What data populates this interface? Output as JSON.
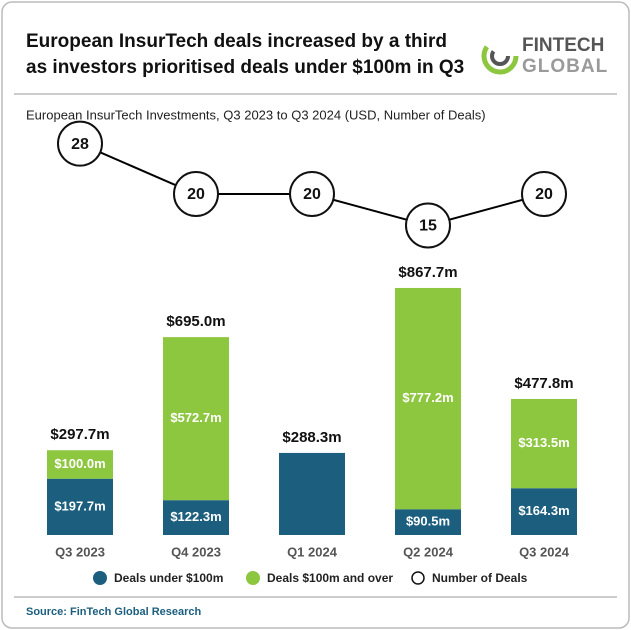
{
  "logo": [
    "FINTECH",
    "GLOBAL"
  ],
  "chart_data": {
    "type": "bar",
    "title": [
      "European InsurTech deals increased by a third",
      "as investors prioritised deals under $100m in Q3"
    ],
    "subtitle": "European InsurTech Investments, Q3 2023 to Q3 2024 (USD, Number of Deals)",
    "source": "Source: FinTech Global Research",
    "categories": [
      "Q3 2023",
      "Q4 2023",
      "Q1 2024",
      "Q2 2024",
      "Q3 2024"
    ],
    "stacked": true,
    "series": [
      {
        "name": "Deals under $100m",
        "color": "#1b5e7e",
        "values": [
          197.7,
          122.3,
          288.3,
          90.5,
          164.3
        ],
        "value_labels": [
          "$197.7m",
          "$122.3m",
          null,
          "$90.5m",
          "$164.3m"
        ]
      },
      {
        "name": "Deals $100m and over",
        "color": "#8dc63f",
        "values": [
          100.0,
          572.7,
          null,
          777.2,
          313.5
        ],
        "value_labels": [
          "$100.0m",
          "$572.7m",
          null,
          "$777.2m",
          "$313.5m"
        ]
      },
      {
        "name": "Number of Deals",
        "type": "line",
        "color": "#000000",
        "values": [
          28,
          20,
          20,
          15,
          20
        ]
      }
    ],
    "totals": {
      "values": [
        297.7,
        695.0,
        288.3,
        867.7,
        477.8
      ],
      "value_labels": [
        "$297.7m",
        "$695.0m",
        "$288.3m",
        "$867.7m",
        "$477.8m"
      ]
    }
  }
}
